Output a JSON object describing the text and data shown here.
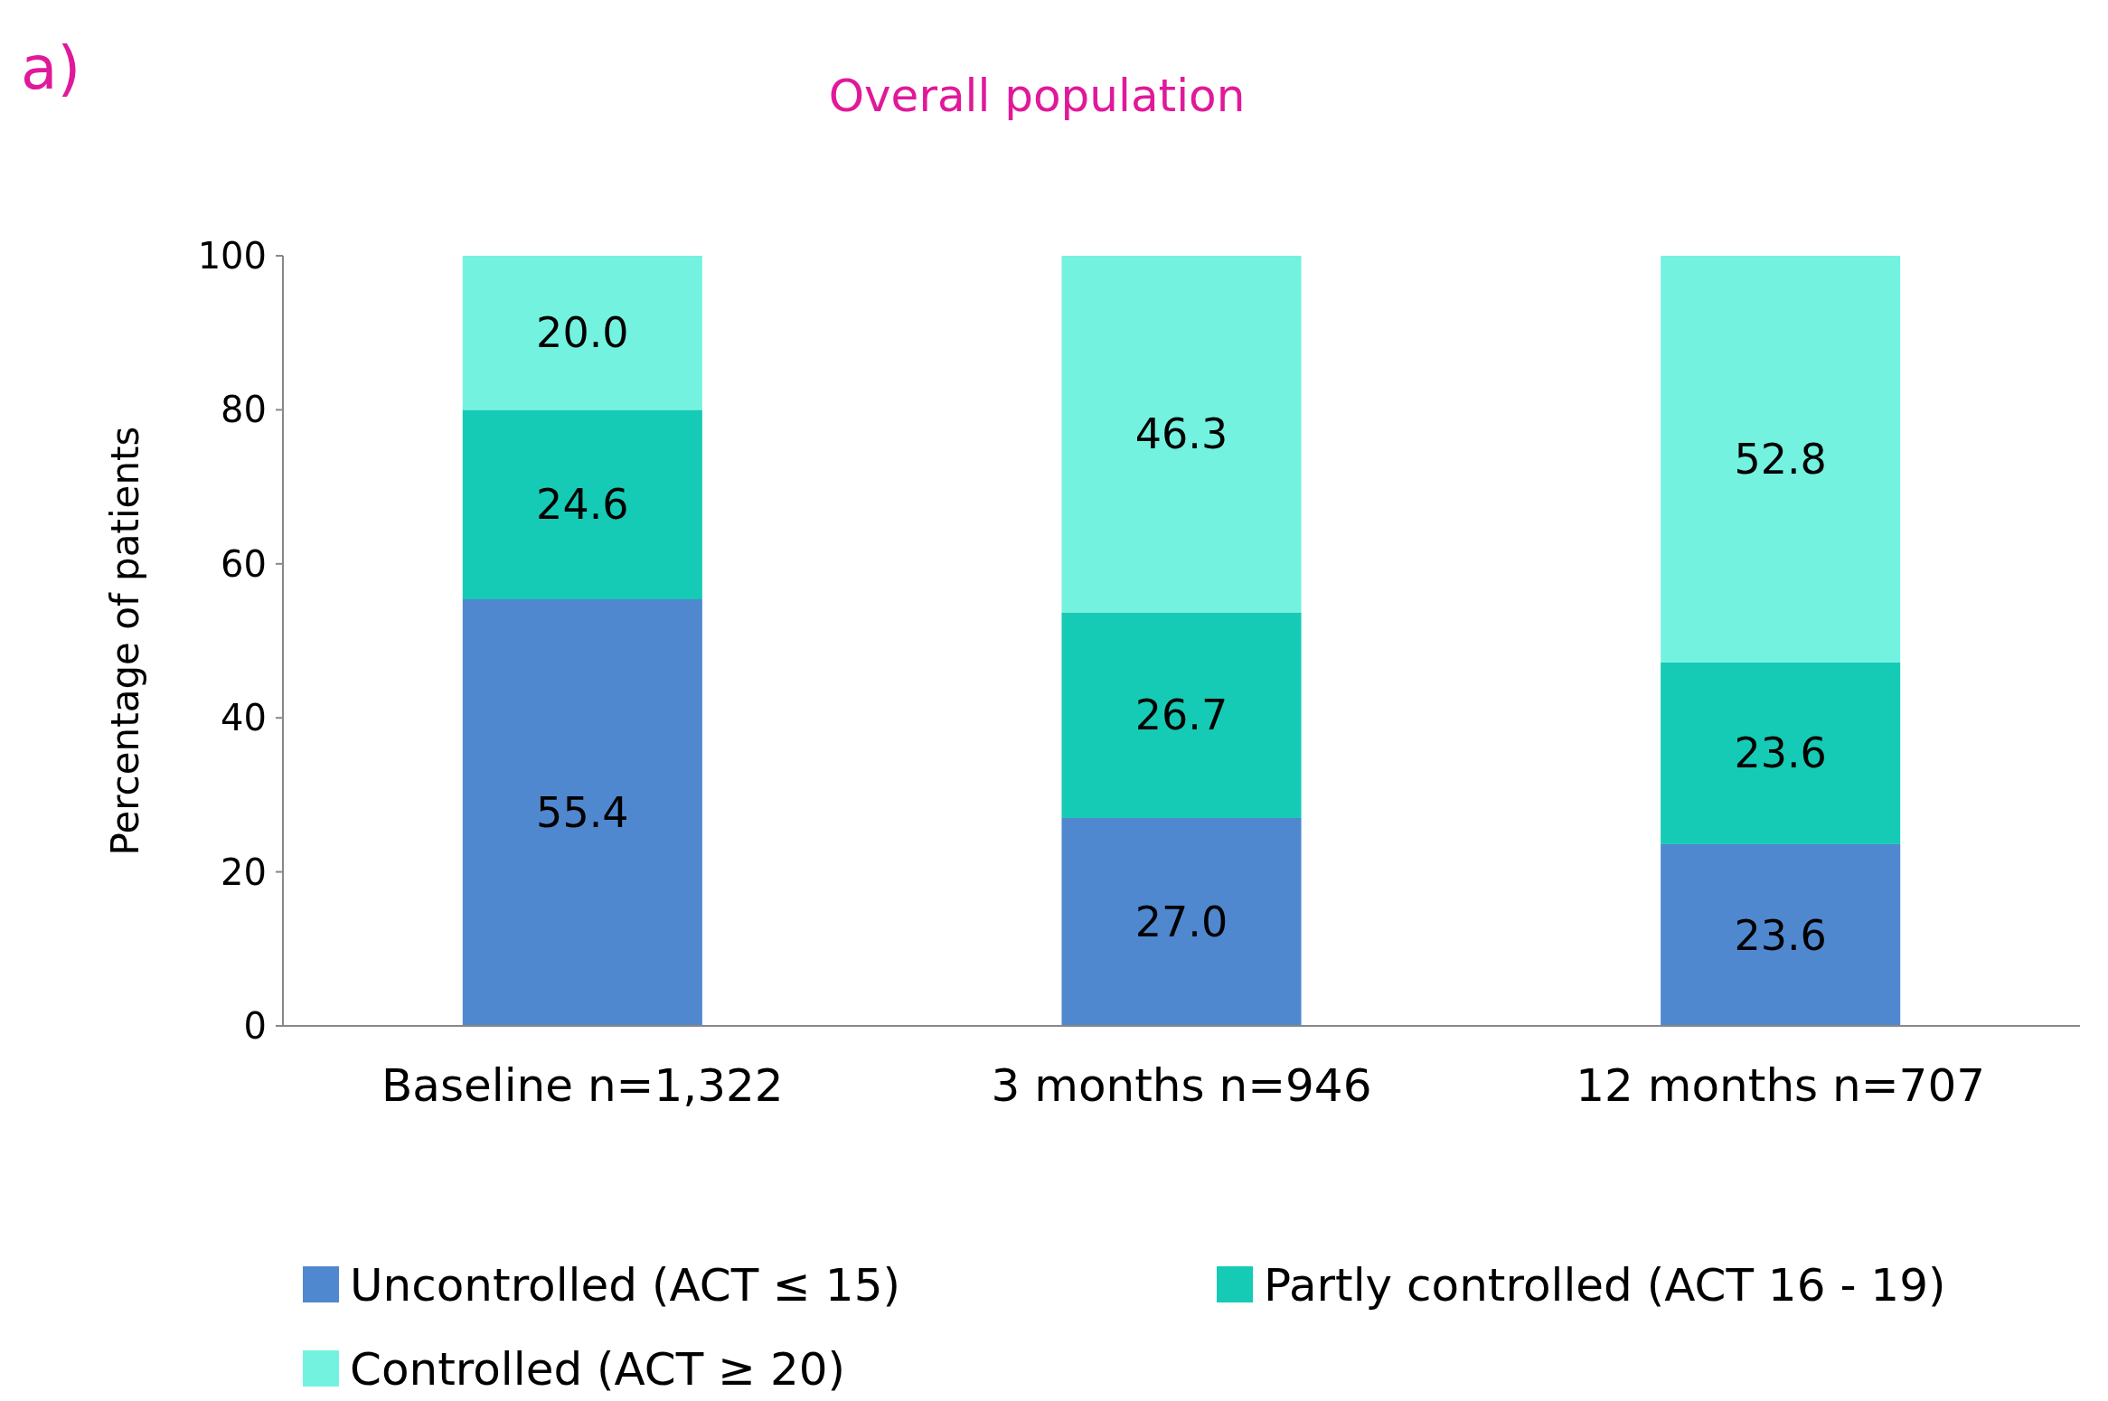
{
  "chart_data": {
    "type": "bar",
    "stacked": true,
    "title": "Overall population",
    "annotations": [
      "a)"
    ],
    "ylabel": "Percentage of patients",
    "categories": [
      "Baseline n=1,322",
      "3 months n=946",
      "12 months n=707"
    ],
    "series": [
      {
        "name": "Uncontrolled (ACT ≤ 15)",
        "color": "#4f88cf",
        "values": [
          55.4,
          27.0,
          23.6
        ],
        "value_labels": [
          "55.4",
          "27.0",
          "23.6"
        ]
      },
      {
        "name": "Partly controlled (ACT 16 - 19)",
        "color": "#16cbb5",
        "values": [
          24.6,
          26.7,
          23.6
        ],
        "value_labels": [
          "24.6",
          "26.7",
          "23.6"
        ]
      },
      {
        "name": "Controlled (ACT ≥ 20)",
        "color": "#74f2e0",
        "values": [
          20.0,
          46.3,
          52.8
        ],
        "value_labels": [
          "20.0",
          "46.3",
          "52.8"
        ]
      }
    ],
    "ylim": [
      0,
      100
    ],
    "yticks": [
      0,
      20,
      40,
      60,
      80,
      100
    ],
    "grid": false,
    "legend": "bottom"
  }
}
